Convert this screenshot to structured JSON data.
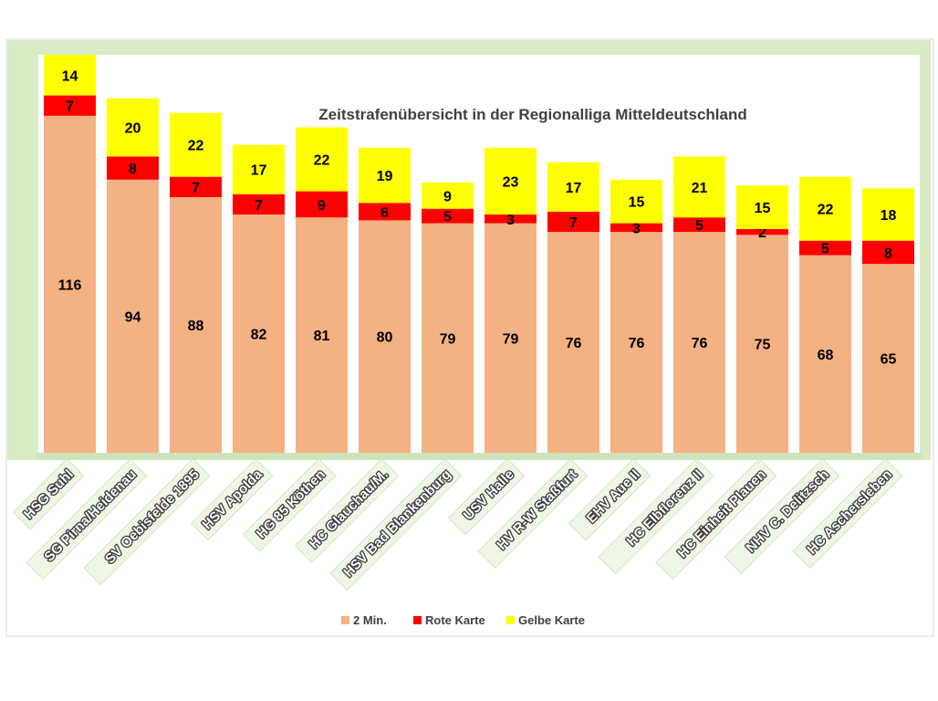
{
  "chart_data": {
    "type": "bar",
    "stacked": true,
    "title": "Zeitstrafenübersicht in der Regionalliga Mitteldeutschland",
    "categories": [
      "HSG Suhl",
      "SG Pirna/Heidenau",
      "SV Oebisfelde 1895",
      "HSV Apolda",
      "HG 85 Köthen",
      "HC Glauchau/M.",
      "HSV Bad Blankenburg",
      "USV Halle",
      "HV R-W Staßfurt",
      "EHV Aue II",
      "HC Elbflorenz II",
      "HC Einheit Plauen",
      "NHV C. Delitzsch",
      "HC Aschersleben"
    ],
    "series": [
      {
        "name": "2 Min.",
        "color": "#f4b183",
        "values": [
          116,
          94,
          88,
          82,
          81,
          80,
          79,
          79,
          76,
          76,
          76,
          75,
          68,
          65
        ]
      },
      {
        "name": "Rote Karte",
        "color": "#ff0000",
        "values": [
          7,
          8,
          7,
          7,
          9,
          6,
          5,
          3,
          7,
          3,
          5,
          2,
          5,
          8
        ]
      },
      {
        "name": "Gelbe Karte",
        "color": "#ffff00",
        "values": [
          14,
          20,
          22,
          17,
          22,
          19,
          9,
          23,
          17,
          15,
          21,
          15,
          22,
          18
        ]
      }
    ],
    "ylim": [
      0,
      137
    ],
    "grid": false,
    "legend_position": "bottom",
    "xlabel": "",
    "ylabel": ""
  },
  "colors": {
    "frame_green": "#d8ebc4",
    "label_box_fill": "#eef7e6",
    "plot_bg": "#ffffff"
  }
}
